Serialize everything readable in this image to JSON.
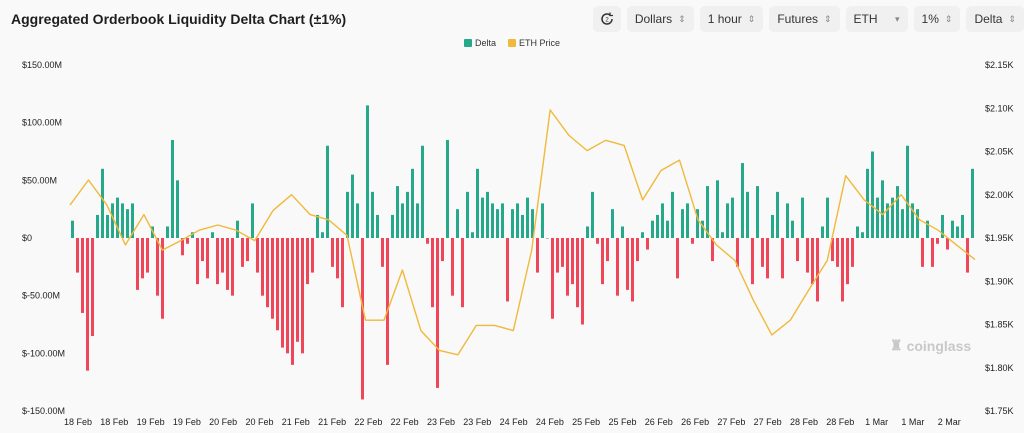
{
  "title": "Aggregated Orderbook Liquidity Delta Chart (±1%)",
  "toolbar": {
    "refresh_icon": "refresh-icon",
    "items": [
      "Dollars",
      "1 hour",
      "Futures",
      "ETH",
      "1%",
      "Delta"
    ]
  },
  "watermark": "coinglass",
  "colors": {
    "positive": "#26a98a",
    "negative": "#f0465a",
    "price": "#f0b93a"
  },
  "chart_data": {
    "type": "bar",
    "title": "Aggregated Orderbook Liquidity Delta Chart (±1%)",
    "legend": [
      "Delta",
      "ETH Price"
    ],
    "legend_position": "top-center",
    "y_left": {
      "ticks": [
        "$150.00M",
        "$100.00M",
        "$50.00M",
        "$0",
        "$-50.00M",
        "$-100.00M",
        "$-150.00M"
      ],
      "range": [
        -150,
        150
      ],
      "unit": "M USD"
    },
    "y_right": {
      "ticks": [
        "$2.15K",
        "$2.10K",
        "$2.05K",
        "$2.00K",
        "$1.95K",
        "$1.90K",
        "$1.85K",
        "$1.80K",
        "$1.75K"
      ],
      "range": [
        1.75,
        2.15
      ],
      "unit": "K USD"
    },
    "x_ticks": [
      "18 Feb",
      "18 Feb",
      "19 Feb",
      "19 Feb",
      "20 Feb",
      "20 Feb",
      "21 Feb",
      "21 Feb",
      "22 Feb",
      "22 Feb",
      "23 Feb",
      "23 Feb",
      "24 Feb",
      "24 Feb",
      "25 Feb",
      "25 Feb",
      "26 Feb",
      "26 Feb",
      "27 Feb",
      "27 Feb",
      "28 Feb",
      "28 Feb",
      "1 Mar",
      "1 Mar",
      "2 Mar"
    ],
    "delta": [
      15,
      -30,
      -65,
      -115,
      -85,
      20,
      60,
      20,
      30,
      35,
      30,
      25,
      30,
      -45,
      -35,
      -30,
      10,
      -50,
      -70,
      10,
      85,
      50,
      -15,
      -5,
      5,
      -40,
      -20,
      -35,
      5,
      -40,
      -30,
      -45,
      -50,
      15,
      -25,
      -20,
      30,
      -30,
      -50,
      -60,
      -70,
      -80,
      -95,
      -100,
      -110,
      -90,
      -100,
      -40,
      -30,
      20,
      5,
      80,
      -25,
      -35,
      -60,
      40,
      55,
      30,
      -140,
      115,
      40,
      20,
      -25,
      -110,
      20,
      45,
      30,
      40,
      60,
      30,
      80,
      -5,
      -60,
      -130,
      -20,
      85,
      -50,
      25,
      -60,
      40,
      5,
      60,
      35,
      40,
      30,
      25,
      30,
      -55,
      25,
      30,
      20,
      35,
      25,
      -30,
      30,
      0,
      -70,
      -30,
      -25,
      -50,
      -40,
      -60,
      -75,
      10,
      40,
      -5,
      -40,
      -20,
      25,
      -50,
      10,
      -45,
      -55,
      -20,
      5,
      -10,
      15,
      20,
      30,
      15,
      40,
      -35,
      25,
      30,
      -5,
      25,
      15,
      45,
      -20,
      50,
      5,
      30,
      35,
      -25,
      65,
      40,
      -40,
      45,
      -25,
      -35,
      20,
      40,
      -35,
      30,
      15,
      -20,
      35,
      -30,
      -40,
      -55,
      10,
      35,
      -20,
      -25,
      -55,
      -40,
      -25,
      10,
      5,
      60,
      75,
      35,
      50,
      30,
      35,
      45,
      25,
      80,
      30,
      25,
      -25,
      15,
      -25,
      -5,
      20,
      -10,
      15,
      10,
      20,
      -30,
      60
    ],
    "eth_price": [
      1.988,
      2.017,
      1.988,
      1.942,
      1.977,
      1.936,
      1.947,
      1.959,
      1.965,
      1.959,
      1.947,
      1.982,
      2.0,
      1.977,
      1.971,
      1.953,
      1.855,
      1.855,
      1.913,
      1.843,
      1.82,
      1.815,
      1.849,
      1.849,
      1.843,
      1.936,
      2.098,
      2.069,
      2.051,
      2.063,
      2.057,
      1.994,
      2.028,
      2.04,
      1.971,
      1.942,
      1.924,
      1.878,
      1.838,
      1.855,
      1.89,
      1.924,
      2.022,
      1.994,
      1.977,
      2.0,
      1.971,
      1.959,
      1.942,
      1.925
    ]
  }
}
